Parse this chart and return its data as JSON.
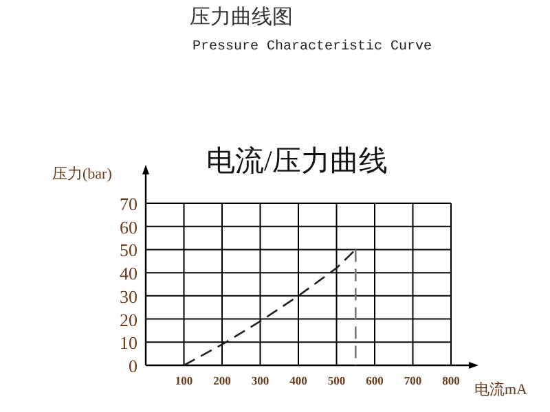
{
  "chart_data": {
    "type": "line",
    "title": "压力曲线图",
    "subtitle": "Pressure Characteristic Curve",
    "annotations": [
      "电流/压力曲线"
    ],
    "xlabel": "电流mA",
    "ylabel": "压力(bar)",
    "xlim": [
      0,
      800
    ],
    "ylim": [
      0,
      70
    ],
    "xticks": [
      {
        "value": 0,
        "label": null
      },
      100,
      200,
      300,
      400,
      500,
      600,
      700,
      800
    ],
    "yticks": [
      0,
      10,
      20,
      30,
      40,
      50,
      60,
      70
    ],
    "grid": true,
    "marker": "none",
    "line_style": "dashed",
    "series": [
      {
        "color": "#222222",
        "x": [
          100,
          200,
          300,
          400,
          500,
          550
        ],
        "values": [
          0,
          9,
          19,
          30,
          42,
          50
        ]
      },
      {
        "color": "#777777",
        "x": [
          550,
          550
        ],
        "values": [
          50,
          0
        ]
      }
    ]
  }
}
